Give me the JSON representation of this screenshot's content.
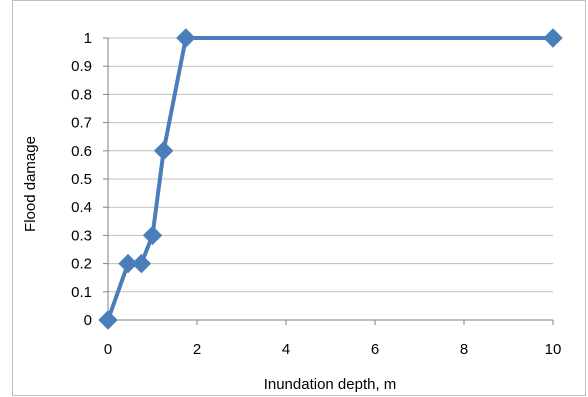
{
  "chart_data": {
    "type": "line",
    "title": "",
    "xlabel": "Inundation depth, m",
    "ylabel": "Flood damage",
    "xlim": [
      0,
      10
    ],
    "ylim": [
      0,
      1
    ],
    "xticks": [
      0,
      2,
      4,
      6,
      8,
      10
    ],
    "xtick_labels": [
      "0",
      "2",
      "4",
      "6",
      "8",
      "10"
    ],
    "yticks": [
      0,
      0.1,
      0.2,
      0.3,
      0.4,
      0.5,
      0.6,
      0.7,
      0.8,
      0.9,
      1
    ],
    "ytick_labels": [
      "0",
      "0.1",
      "0.2",
      "0.3",
      "0.4",
      "0.5",
      "0.6",
      "0.7",
      "0.8",
      "0.9",
      "1"
    ],
    "grid": {
      "horizontal": true,
      "vertical": false
    },
    "legend": "none",
    "series": [
      {
        "x": [
          0,
          0.45,
          0.75,
          1.0,
          1.25,
          1.75,
          10
        ],
        "y": [
          0,
          0.2,
          0.2,
          0.3,
          0.6,
          1.0,
          1.0
        ],
        "marker": "diamond",
        "color": "#4a7ebb"
      }
    ],
    "colors": {
      "series": "#4a7ebb",
      "grid": "#bfbfbf",
      "axis": "#808080"
    }
  }
}
